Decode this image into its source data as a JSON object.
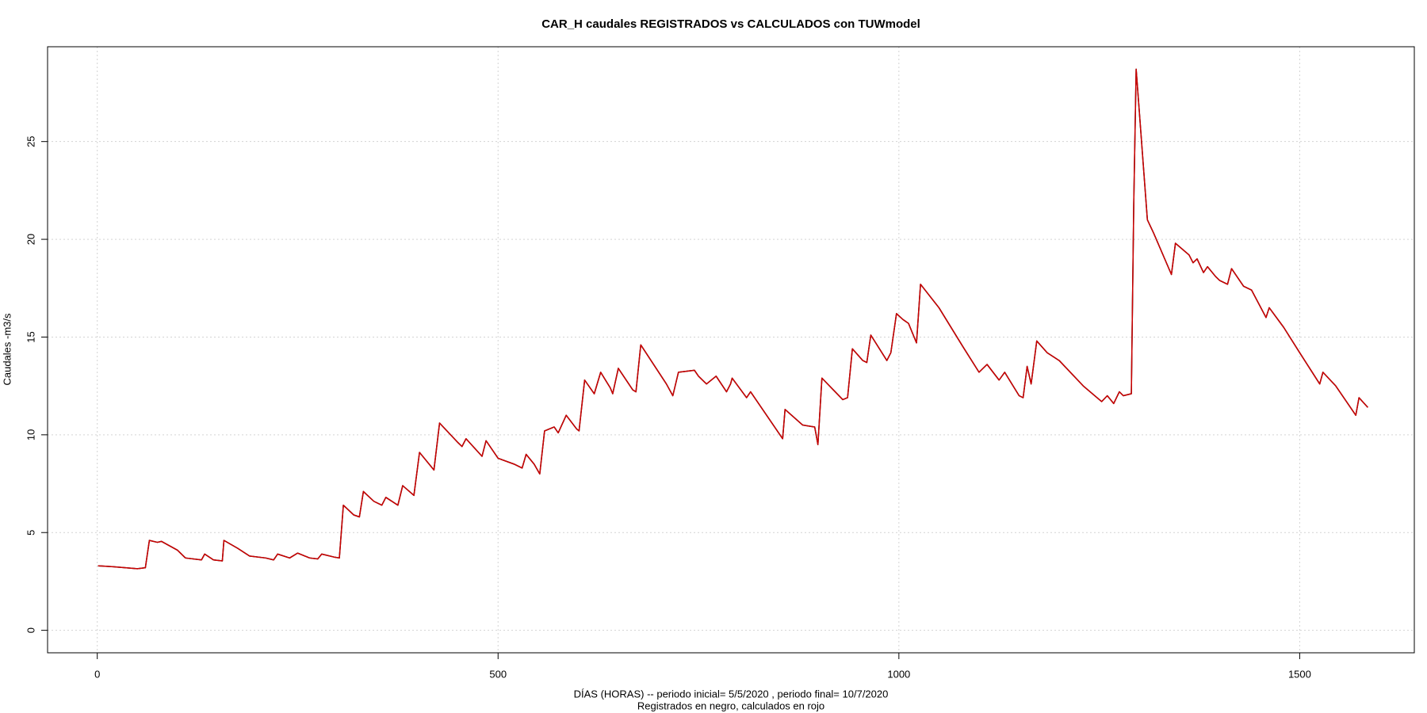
{
  "chart_data": {
    "type": "line",
    "title": "CAR_H caudales REGISTRADOS vs CALCULADOS con TUWmodel",
    "xlabel": "DÍAS (HORAS) --  periodo inicial= 5/5/2020 ,  periodo final= 10/7/2020",
    "xlabel2": "Registrados en negro, calculados en rojo",
    "ylabel": "Caudales -m3/s",
    "xlim": [
      -62,
      1643
    ],
    "ylim": [
      -1.15,
      29.85
    ],
    "xticks": [
      0,
      500,
      1000,
      1500
    ],
    "yticks": [
      0,
      5,
      10,
      15,
      20,
      25
    ],
    "grid": true,
    "x": [
      1,
      20,
      50,
      60,
      65,
      75,
      80,
      100,
      110,
      130,
      134,
      145,
      156,
      158,
      175,
      190,
      210,
      220,
      225,
      240,
      250,
      265,
      275,
      280,
      295,
      302,
      307,
      320,
      327,
      332,
      345,
      355,
      360,
      375,
      381,
      395,
      402,
      420,
      427,
      450,
      455,
      460,
      480,
      485,
      500,
      520,
      530,
      535,
      545,
      552,
      558,
      570,
      575,
      585,
      598,
      601,
      608,
      620,
      628,
      640,
      643,
      650,
      668,
      672,
      678,
      710,
      718,
      725,
      745,
      750,
      760,
      772,
      785,
      790,
      792,
      810,
      815,
      855,
      858,
      880,
      895,
      899,
      904,
      930,
      936,
      942,
      955,
      960,
      965,
      985,
      990,
      997,
      1005,
      1012,
      1022,
      1027,
      1050,
      1080,
      1100,
      1110,
      1125,
      1132,
      1150,
      1155,
      1160,
      1165,
      1172,
      1185,
      1200,
      1230,
      1253,
      1260,
      1268,
      1275,
      1280,
      1290,
      1293,
      1296,
      1310,
      1318,
      1340,
      1345,
      1362,
      1367,
      1372,
      1380,
      1385,
      1395,
      1400,
      1410,
      1415,
      1430,
      1440,
      1458,
      1462,
      1480,
      1500,
      1525,
      1529,
      1545,
      1570,
      1574,
      1585
    ],
    "series": [
      {
        "name": "Registrados",
        "color": "#000000",
        "values": [
          3.3,
          3.25,
          3.15,
          3.2,
          4.6,
          4.5,
          4.55,
          4.1,
          3.7,
          3.6,
          3.9,
          3.6,
          3.55,
          4.6,
          4.2,
          3.8,
          3.7,
          3.6,
          3.9,
          3.7,
          3.95,
          3.7,
          3.65,
          3.9,
          3.75,
          3.7,
          6.4,
          5.9,
          5.8,
          7.1,
          6.6,
          6.4,
          6.8,
          6.4,
          7.4,
          6.9,
          9.1,
          8.2,
          10.6,
          9.6,
          9.4,
          9.8,
          8.9,
          9.7,
          8.8,
          8.5,
          8.3,
          9.0,
          8.5,
          8.0,
          10.2,
          10.4,
          10.1,
          11.0,
          10.3,
          10.2,
          12.8,
          12.1,
          13.2,
          12.4,
          12.1,
          13.4,
          12.3,
          12.2,
          14.6,
          12.6,
          12.0,
          13.2,
          13.3,
          13.0,
          12.6,
          13.0,
          12.2,
          12.6,
          12.9,
          11.9,
          12.2,
          9.8,
          11.3,
          10.5,
          10.4,
          9.5,
          12.9,
          11.8,
          11.9,
          14.4,
          13.8,
          13.7,
          15.1,
          13.8,
          14.2,
          16.2,
          15.9,
          15.7,
          14.7,
          17.7,
          16.5,
          14.5,
          13.2,
          13.6,
          12.8,
          13.2,
          12.0,
          11.9,
          13.5,
          12.6,
          14.8,
          14.2,
          13.8,
          12.5,
          11.7,
          12.0,
          11.6,
          12.2,
          12.0,
          12.1,
          21.8,
          28.7,
          21.0,
          20.3,
          18.2,
          19.8,
          19.2,
          18.8,
          19.0,
          18.3,
          18.6,
          18.1,
          17.9,
          17.7,
          18.5,
          17.6,
          17.4,
          16.0,
          16.5,
          15.5,
          14.2,
          12.6,
          13.2,
          12.5,
          11.0,
          11.9,
          11.4
        ]
      },
      {
        "name": "Calculados",
        "color": "#cc0000",
        "values": [
          3.3,
          3.25,
          3.15,
          3.2,
          4.6,
          4.5,
          4.55,
          4.1,
          3.7,
          3.6,
          3.9,
          3.6,
          3.55,
          4.6,
          4.2,
          3.8,
          3.7,
          3.6,
          3.9,
          3.7,
          3.95,
          3.7,
          3.65,
          3.9,
          3.75,
          3.7,
          6.4,
          5.9,
          5.8,
          7.1,
          6.6,
          6.4,
          6.8,
          6.4,
          7.4,
          6.9,
          9.1,
          8.2,
          10.6,
          9.6,
          9.4,
          9.8,
          8.9,
          9.7,
          8.8,
          8.5,
          8.3,
          9.0,
          8.5,
          8.0,
          10.2,
          10.4,
          10.1,
          11.0,
          10.3,
          10.2,
          12.8,
          12.1,
          13.2,
          12.4,
          12.1,
          13.4,
          12.3,
          12.2,
          14.6,
          12.6,
          12.0,
          13.2,
          13.3,
          13.0,
          12.6,
          13.0,
          12.2,
          12.6,
          12.9,
          11.9,
          12.2,
          9.8,
          11.3,
          10.5,
          10.4,
          9.5,
          12.9,
          11.8,
          11.9,
          14.4,
          13.8,
          13.7,
          15.1,
          13.8,
          14.2,
          16.2,
          15.9,
          15.7,
          14.7,
          17.7,
          16.5,
          14.5,
          13.2,
          13.6,
          12.8,
          13.2,
          12.0,
          11.9,
          13.5,
          12.6,
          14.8,
          14.2,
          13.8,
          12.5,
          11.7,
          12.0,
          11.6,
          12.2,
          12.0,
          12.1,
          21.8,
          28.7,
          21.0,
          20.3,
          18.2,
          19.8,
          19.2,
          18.8,
          19.0,
          18.3,
          18.6,
          18.1,
          17.9,
          17.7,
          18.5,
          17.6,
          17.4,
          16.0,
          16.5,
          15.5,
          14.2,
          12.6,
          13.2,
          12.5,
          11.0,
          11.9,
          11.4
        ]
      }
    ]
  }
}
